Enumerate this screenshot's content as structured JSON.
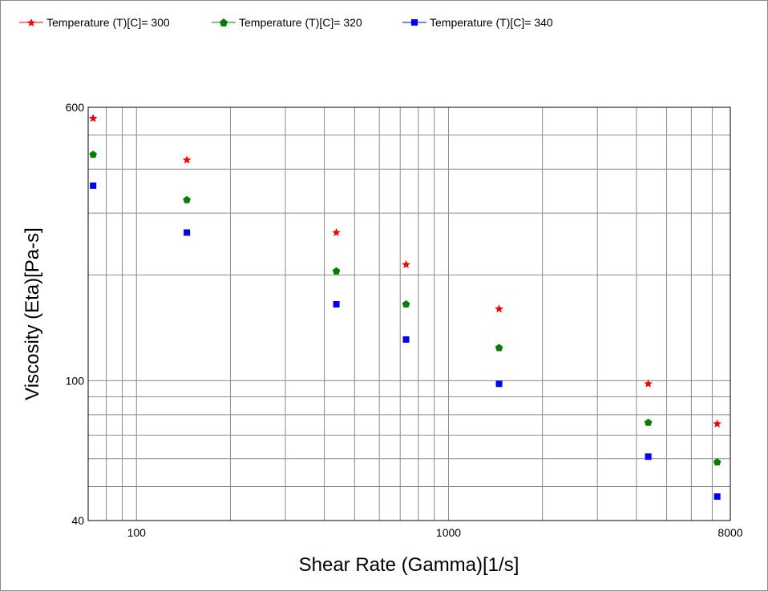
{
  "chart_data": {
    "type": "scatter",
    "title": "",
    "xlabel": "Shear Rate (Gamma)[1/s]",
    "ylabel": "Viscosity (Eta)[Pa-s]",
    "xscale": "log",
    "yscale": "log",
    "xlim": [
      70,
      8000
    ],
    "ylim": [
      40,
      600
    ],
    "x_tick_labels": [
      "100",
      "1000",
      "8000"
    ],
    "x_tick_values": [
      100,
      1000,
      8000
    ],
    "y_tick_labels": [
      "600",
      "100",
      "40"
    ],
    "y_tick_values": [
      600,
      100,
      40
    ],
    "grid": true,
    "legend_position": "top",
    "x": [
      72.6,
      145,
      437,
      731,
      1452,
      4366,
      7262
    ],
    "series": [
      {
        "name": "Temperature (T)[C]= 300",
        "color": "#ff0000",
        "marker": "star",
        "values": [
          558,
          425,
          264,
          214,
          160,
          98,
          75.4
        ]
      },
      {
        "name": "Temperature (T)[C]= 320",
        "color": "#008000",
        "marker": "pentagon",
        "values": [
          440,
          327,
          205,
          165,
          124,
          76,
          58.6
        ]
      },
      {
        "name": "Temperature (T)[C]= 340",
        "color": "#0000ff",
        "marker": "square",
        "values": [
          359,
          264,
          165,
          131,
          98,
          60.8,
          46.8
        ]
      }
    ]
  }
}
